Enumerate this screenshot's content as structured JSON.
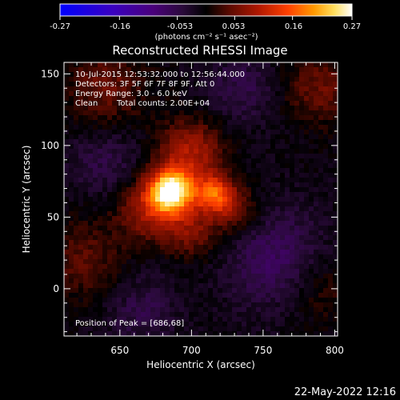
{
  "colorbar": {
    "ticks": [
      "-0.27",
      "-0.16",
      "-0.053",
      "0.053",
      "0.16",
      "0.27"
    ],
    "tick_values": [
      -0.27,
      -0.16,
      -0.053,
      0.053,
      0.16,
      0.27
    ],
    "range": [
      -0.27,
      0.27
    ],
    "units": "(photons cm⁻² s⁻¹ asec⁻²)"
  },
  "annotations": {
    "time": "10-Jul-2015 12:53:32.000 to 12:56:44.000",
    "detectors": "Detectors: 3F 5F 6F 7F 8F 9F, Att 0",
    "energy": "Energy Range: 3.0 - 6.0 keV",
    "clean": "Clean",
    "counts": "Total counts: 2.00E+04",
    "peak": "Position of Peak = [686,68]"
  },
  "footer": {
    "date": "22-May-2022 12:16"
  },
  "chart_data": {
    "type": "heatmap",
    "title": "Reconstructed RHESSI Image",
    "xlabel": "Heliocentric X (arcsec)",
    "ylabel": "Heliocentric Y (arcsec)",
    "xlim": [
      611,
      802
    ],
    "ylim": [
      -33,
      158
    ],
    "xticks": [
      650,
      700,
      750,
      800
    ],
    "yticks": [
      0,
      50,
      100,
      150
    ],
    "peak": [
      686,
      68
    ],
    "colormap": [
      "#0000ff",
      "#3a00c0",
      "#4a007a",
      "#2a0a3a",
      "#000000",
      "#5a0a00",
      "#b01800",
      "#ff4000",
      "#ff9a00",
      "#ffe060",
      "#ffffff"
    ],
    "sources": [
      {
        "x": 686,
        "y": 68,
        "amp": 0.27,
        "sigma": 11
      },
      {
        "x": 716,
        "y": 66,
        "amp": 0.15,
        "sigma": 9
      },
      {
        "x": 700,
        "y": 95,
        "amp": 0.1,
        "sigma": 16
      },
      {
        "x": 670,
        "y": 55,
        "amp": 0.09,
        "sigma": 15
      },
      {
        "x": 700,
        "y": 40,
        "amp": 0.07,
        "sigma": 13
      },
      {
        "x": 730,
        "y": 55,
        "amp": 0.07,
        "sigma": 12
      },
      {
        "x": 640,
        "y": 140,
        "amp": 0.06,
        "sigma": 20
      },
      {
        "x": 790,
        "y": 140,
        "amp": 0.06,
        "sigma": 18
      },
      {
        "x": 625,
        "y": 20,
        "amp": 0.05,
        "sigma": 20
      },
      {
        "x": 790,
        "y": 0,
        "amp": 0.04,
        "sigma": 18
      },
      {
        "x": 760,
        "y": 20,
        "amp": -0.06,
        "sigma": 25
      },
      {
        "x": 640,
        "y": 90,
        "amp": -0.04,
        "sigma": 18
      },
      {
        "x": 735,
        "y": 140,
        "amp": -0.04,
        "sigma": 18
      },
      {
        "x": 665,
        "y": -15,
        "amp": -0.04,
        "sigma": 18
      }
    ]
  }
}
